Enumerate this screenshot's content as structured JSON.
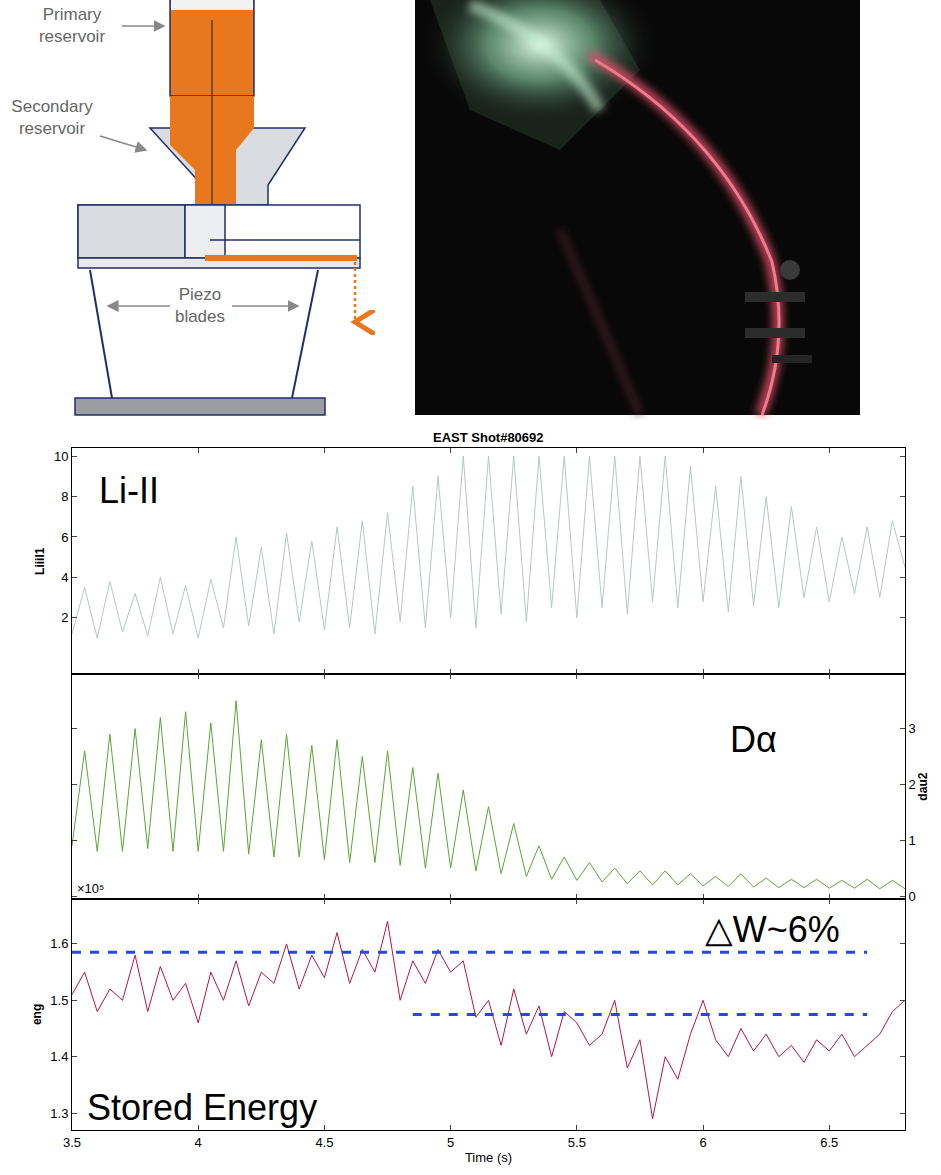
{
  "diagram": {
    "labels": [
      "Primary reservoir",
      "Secondary reservoir",
      "Piezo blades"
    ]
  },
  "chart_data": [
    {
      "type": "line",
      "title": "EAST Shot#80692",
      "x": [
        3.5,
        3.55,
        3.6,
        3.65,
        3.7,
        3.75,
        3.8,
        3.85,
        3.9,
        3.95,
        4,
        4.05,
        4.1,
        4.15,
        4.2,
        4.25,
        4.3,
        4.35,
        4.4,
        4.45,
        4.5,
        4.55,
        4.6,
        4.65,
        4.7,
        4.75,
        4.8,
        4.85,
        4.9,
        4.95,
        5,
        5.05,
        5.1,
        5.15,
        5.2,
        5.25,
        5.3,
        5.35,
        5.4,
        5.45,
        5.5,
        5.55,
        5.6,
        5.65,
        5.7,
        5.75,
        5.8,
        5.85,
        5.9,
        5.95,
        6,
        6.05,
        6.1,
        6.15,
        6.2,
        6.25,
        6.3,
        6.35,
        6.4,
        6.45,
        6.5,
        6.55,
        6.6,
        6.65,
        6.7,
        6.75,
        6.8
      ],
      "xlim": [
        3.5,
        6.8
      ],
      "xticks": [
        3.5,
        4,
        4.5,
        5,
        5.5,
        6,
        6.5
      ],
      "ylabel": "Liiil1",
      "ylim": [
        -0.8,
        10.4
      ],
      "yticks": [
        2,
        4,
        6,
        8,
        10
      ],
      "tick_labels": "y",
      "grid": false,
      "series": [
        {
          "color": "#b9c6c4",
          "values": [
            1.2,
            3.5,
            1.0,
            3.8,
            1.3,
            3.2,
            1.1,
            4.0,
            1.2,
            3.6,
            1.0,
            3.9,
            1.5,
            6.0,
            1.6,
            5.5,
            1.2,
            6.2,
            1.8,
            5.8,
            1.4,
            6.5,
            1.5,
            6.8,
            1.2,
            7.2,
            1.8,
            8.5,
            1.5,
            9.0,
            2.0,
            10,
            1.5,
            10,
            2.2,
            10,
            1.8,
            10,
            2.5,
            10,
            2.0,
            10,
            2.5,
            10,
            2.2,
            10,
            2.8,
            10,
            2.5,
            9.5,
            2.8,
            8.5,
            2.3,
            9.0,
            2.6,
            8.0,
            2.5,
            7.5,
            3.0,
            6.5,
            2.8,
            6.0,
            3.2,
            6.5,
            3.0,
            6.8,
            4.5
          ]
        }
      ],
      "annotations": [
        {
          "text": "Li-II",
          "x": 3.6,
          "y": 8.3
        }
      ]
    },
    {
      "type": "line",
      "x": [
        3.5,
        3.55,
        3.6,
        3.65,
        3.7,
        3.75,
        3.8,
        3.85,
        3.9,
        3.95,
        4,
        4.05,
        4.1,
        4.15,
        4.2,
        4.25,
        4.3,
        4.35,
        4.4,
        4.45,
        4.5,
        4.55,
        4.6,
        4.65,
        4.7,
        4.75,
        4.8,
        4.85,
        4.9,
        4.95,
        5,
        5.05,
        5.1,
        5.15,
        5.2,
        5.25,
        5.3,
        5.35,
        5.4,
        5.45,
        5.5,
        5.55,
        5.6,
        5.65,
        5.7,
        5.75,
        5.8,
        5.85,
        5.9,
        5.95,
        6,
        6.05,
        6.1,
        6.15,
        6.2,
        6.25,
        6.3,
        6.35,
        6.4,
        6.45,
        6.5,
        6.55,
        6.6,
        6.65,
        6.7,
        6.75,
        6.8
      ],
      "xlim": [
        3.5,
        6.8
      ],
      "xticks": [
        3.5,
        4,
        4.5,
        5,
        5.5,
        6,
        6.5
      ],
      "y2label": "dau2",
      "y2lim": [
        -0.05,
        3.97
      ],
      "y2ticks": [
        0,
        1,
        2,
        3
      ],
      "tick_labels": "y",
      "grid": false,
      "series": [
        {
          "axis": "y2",
          "color": "#5aa632",
          "values": [
            0.9,
            2.6,
            0.8,
            2.9,
            0.8,
            3.0,
            0.85,
            3.2,
            0.8,
            3.3,
            0.8,
            3.1,
            0.8,
            3.5,
            0.75,
            2.8,
            0.7,
            2.9,
            0.7,
            2.7,
            0.65,
            2.8,
            0.6,
            2.5,
            0.6,
            2.6,
            0.55,
            2.3,
            0.5,
            2.2,
            0.5,
            1.9,
            0.45,
            1.6,
            0.4,
            1.3,
            0.35,
            0.9,
            0.3,
            0.7,
            0.28,
            0.6,
            0.25,
            0.5,
            0.22,
            0.45,
            0.2,
            0.45,
            0.2,
            0.4,
            0.18,
            0.35,
            0.17,
            0.4,
            0.16,
            0.32,
            0.15,
            0.3,
            0.15,
            0.3,
            0.14,
            0.28,
            0.14,
            0.3,
            0.13,
            0.28,
            0.13
          ]
        }
      ],
      "annotations": [
        {
          "text": "Dα",
          "x": 6.1,
          "y": 2.8
        },
        {
          "text": "×10⁵",
          "x": 3.51,
          "y": -0.03
        }
      ]
    },
    {
      "type": "line",
      "x": [
        3.5,
        3.55,
        3.6,
        3.65,
        3.7,
        3.75,
        3.8,
        3.85,
        3.9,
        3.95,
        4,
        4.05,
        4.1,
        4.15,
        4.2,
        4.25,
        4.3,
        4.35,
        4.4,
        4.45,
        4.5,
        4.55,
        4.6,
        4.65,
        4.7,
        4.75,
        4.8,
        4.85,
        4.9,
        4.95,
        5,
        5.05,
        5.1,
        5.15,
        5.2,
        5.25,
        5.3,
        5.35,
        5.4,
        5.45,
        5.5,
        5.55,
        5.6,
        5.65,
        5.7,
        5.75,
        5.8,
        5.85,
        5.9,
        5.95,
        6,
        6.05,
        6.1,
        6.15,
        6.2,
        6.25,
        6.3,
        6.35,
        6.4,
        6.45,
        6.5,
        6.55,
        6.6,
        6.65,
        6.7,
        6.75,
        6.8
      ],
      "xlim": [
        3.5,
        6.8
      ],
      "xticks": [
        3.5,
        4,
        4.5,
        5,
        5.5,
        6,
        6.5
      ],
      "xlabel": "Time (s)",
      "ylabel": "eng",
      "ylim": [
        1.27,
        1.68
      ],
      "yticks": [
        1.3,
        1.4,
        1.5,
        1.6
      ],
      "grid": false,
      "series": [
        {
          "color": "#b5134b",
          "values": [
            1.51,
            1.55,
            1.48,
            1.52,
            1.5,
            1.58,
            1.48,
            1.56,
            1.5,
            1.53,
            1.46,
            1.55,
            1.5,
            1.57,
            1.49,
            1.55,
            1.53,
            1.6,
            1.52,
            1.58,
            1.54,
            1.62,
            1.53,
            1.59,
            1.55,
            1.64,
            1.5,
            1.57,
            1.53,
            1.59,
            1.55,
            1.57,
            1.47,
            1.5,
            1.42,
            1.52,
            1.44,
            1.49,
            1.4,
            1.48,
            1.46,
            1.42,
            1.44,
            1.5,
            1.38,
            1.43,
            1.29,
            1.4,
            1.36,
            1.44,
            1.5,
            1.43,
            1.4,
            1.45,
            1.41,
            1.44,
            1.4,
            1.42,
            1.39,
            1.43,
            1.41,
            1.44,
            1.4,
            1.42,
            1.44,
            1.48,
            1.5
          ]
        }
      ],
      "reference_lines": [
        {
          "x": [
            3.5,
            6.65
          ],
          "y": [
            1.585,
            1.585
          ],
          "color": "#2448e0",
          "line_style": "dash"
        },
        {
          "x": [
            4.85,
            6.65
          ],
          "y": [
            1.475,
            1.475
          ],
          "color": "#2448e0",
          "line_style": "dash"
        }
      ],
      "annotations": [
        {
          "text": "△W~6%",
          "x": 6.0,
          "y": 1.625
        },
        {
          "text": "Stored Energy",
          "x": 3.55,
          "y": 1.31
        }
      ]
    }
  ]
}
